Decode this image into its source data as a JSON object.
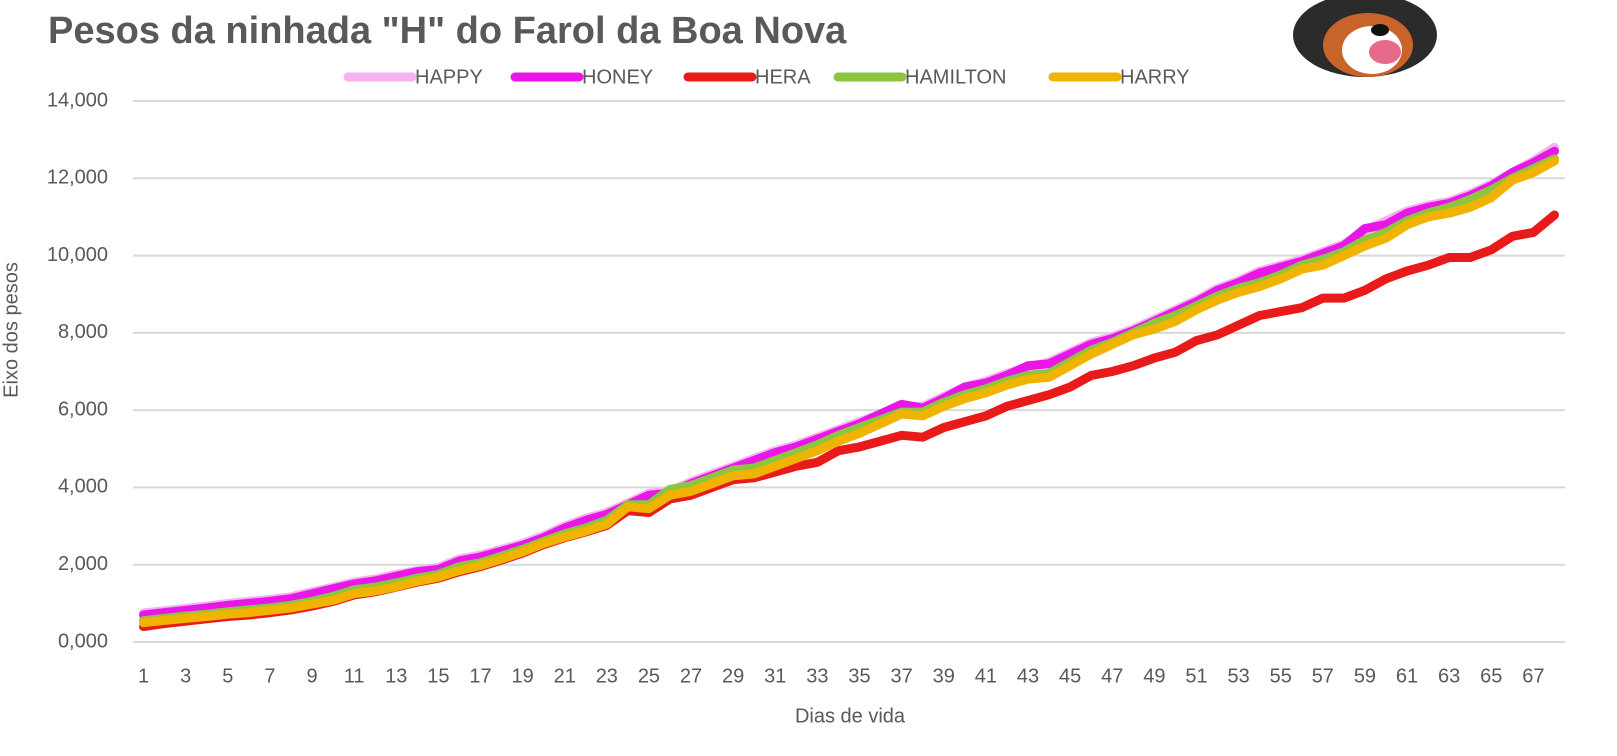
{
  "chart_data": {
    "type": "line",
    "title": "Pesos da ninhada \"H\" do Farol da Boa Nova",
    "x_label": "Dias de vida",
    "y_label": "Eixo dos pesos",
    "categories": [
      "1",
      null,
      "3",
      null,
      "5",
      null,
      "7",
      null,
      "9",
      null,
      "11",
      null,
      "13",
      null,
      "15",
      null,
      "17",
      null,
      "19",
      null,
      "21",
      null,
      "23",
      null,
      "25",
      null,
      "27",
      null,
      "29",
      null,
      "31",
      null,
      "33",
      null,
      "35",
      null,
      "37",
      null,
      "39",
      null,
      "41",
      null,
      "43",
      null,
      "45",
      null,
      "47",
      null,
      "49",
      null,
      "51",
      null,
      "53",
      null,
      "55",
      null,
      "57",
      null,
      "59",
      null,
      "61",
      null,
      "63",
      null,
      "65",
      null,
      "67",
      null
    ],
    "ylim": [
      0,
      14000
    ],
    "yticks": [
      {
        "value": 0,
        "label": "0,000"
      },
      {
        "value": 2000,
        "label": "2,000"
      },
      {
        "value": 4000,
        "label": "4,000"
      },
      {
        "value": 6000,
        "label": "6,000"
      },
      {
        "value": 8000,
        "label": "8,000"
      },
      {
        "value": 10000,
        "label": "10,000"
      },
      {
        "value": 12000,
        "label": "12,000"
      },
      {
        "value": 14000,
        "label": "14,000"
      }
    ],
    "grid": true,
    "legend": "top",
    "series": [
      {
        "name": "HAPPY",
        "color": "#f5b3f0",
        "values": [
          750,
          810,
          870,
          930,
          1000,
          1050,
          1100,
          1170,
          1300,
          1420,
          1550,
          1630,
          1750,
          1850,
          1930,
          2150,
          2250,
          2400,
          2550,
          2750,
          3000,
          3200,
          3350,
          3600,
          3850,
          3900,
          4150,
          4350,
          4550,
          4750,
          4950,
          5100,
          5300,
          5500,
          5700,
          5900,
          6100,
          6100,
          6350,
          6600,
          6750,
          6950,
          7100,
          7250,
          7500,
          7750,
          7900,
          8100,
          8350,
          8600,
          8850,
          9150,
          9350,
          9600,
          9750,
          9900,
          10100,
          10300,
          10650,
          10900,
          11150,
          11300,
          11400,
          11600,
          11850,
          12150,
          12450,
          12800
        ]
      },
      {
        "name": "HONEY",
        "color": "#e817e8",
        "values": [
          700,
          760,
          820,
          880,
          950,
          1000,
          1050,
          1120,
          1250,
          1380,
          1500,
          1580,
          1700,
          1820,
          1880,
          2100,
          2200,
          2350,
          2500,
          2700,
          2950,
          3150,
          3300,
          3550,
          3800,
          3850,
          4100,
          4300,
          4500,
          4700,
          4900,
          5050,
          5250,
          5450,
          5650,
          5900,
          6150,
          6050,
          6300,
          6600,
          6700,
          6900,
          7150,
          7200,
          7450,
          7700,
          7850,
          8050,
          8300,
          8550,
          8800,
          9100,
          9300,
          9550,
          9700,
          9850,
          10050,
          10250,
          10700,
          10800,
          11100,
          11250,
          11350,
          11550,
          11800,
          12150,
          12400,
          12700
        ]
      },
      {
        "name": "HERA",
        "color": "#e81a1a",
        "values": [
          400,
          480,
          540,
          600,
          660,
          700,
          760,
          830,
          930,
          1050,
          1220,
          1300,
          1420,
          1550,
          1650,
          1820,
          1950,
          2120,
          2300,
          2520,
          2700,
          2850,
          3020,
          3400,
          3350,
          3700,
          3800,
          4000,
          4200,
          4250,
          4400,
          4550,
          4650,
          4950,
          5050,
          5200,
          5350,
          5300,
          5550,
          5700,
          5850,
          6100,
          6250,
          6400,
          6600,
          6900,
          7000,
          7150,
          7350,
          7500,
          7800,
          7950,
          8200,
          8450,
          8550,
          8650,
          8900,
          8900,
          9100,
          9400,
          9600,
          9750,
          9950,
          9950,
          10150,
          10500,
          10600,
          11050
        ]
      },
      {
        "name": "HAMILTON",
        "color": "#8cc63f",
        "values": [
          550,
          610,
          670,
          720,
          780,
          830,
          880,
          950,
          1050,
          1180,
          1350,
          1420,
          1530,
          1650,
          1750,
          1950,
          2050,
          2220,
          2400,
          2600,
          2800,
          2950,
          3150,
          3550,
          3550,
          3950,
          4050,
          4250,
          4450,
          4500,
          4700,
          4900,
          5100,
          5350,
          5550,
          5750,
          5950,
          5950,
          6200,
          6400,
          6550,
          6750,
          6900,
          6950,
          7250,
          7550,
          7750,
          8000,
          8250,
          8450,
          8700,
          8950,
          9150,
          9300,
          9500,
          9750,
          9900,
          10100,
          10400,
          10600,
          10900,
          11100,
          11250,
          11450,
          11700,
          12000,
          12250,
          12500
        ]
      },
      {
        "name": "HARRY",
        "color": "#f0b400",
        "values": [
          500,
          560,
          610,
          660,
          720,
          760,
          820,
          880,
          980,
          1080,
          1250,
          1320,
          1430,
          1570,
          1680,
          1850,
          1980,
          2150,
          2330,
          2550,
          2720,
          2870,
          3050,
          3500,
          3450,
          3800,
          3900,
          4100,
          4300,
          4350,
          4550,
          4750,
          4950,
          5200,
          5400,
          5650,
          5900,
          5850,
          6100,
          6300,
          6450,
          6650,
          6800,
          6850,
          7150,
          7450,
          7700,
          7950,
          8100,
          8300,
          8600,
          8850,
          9050,
          9200,
          9400,
          9650,
          9750,
          10000,
          10250,
          10450,
          10800,
          11000,
          11100,
          11250,
          11500,
          11950,
          12150,
          12450
        ]
      }
    ]
  }
}
